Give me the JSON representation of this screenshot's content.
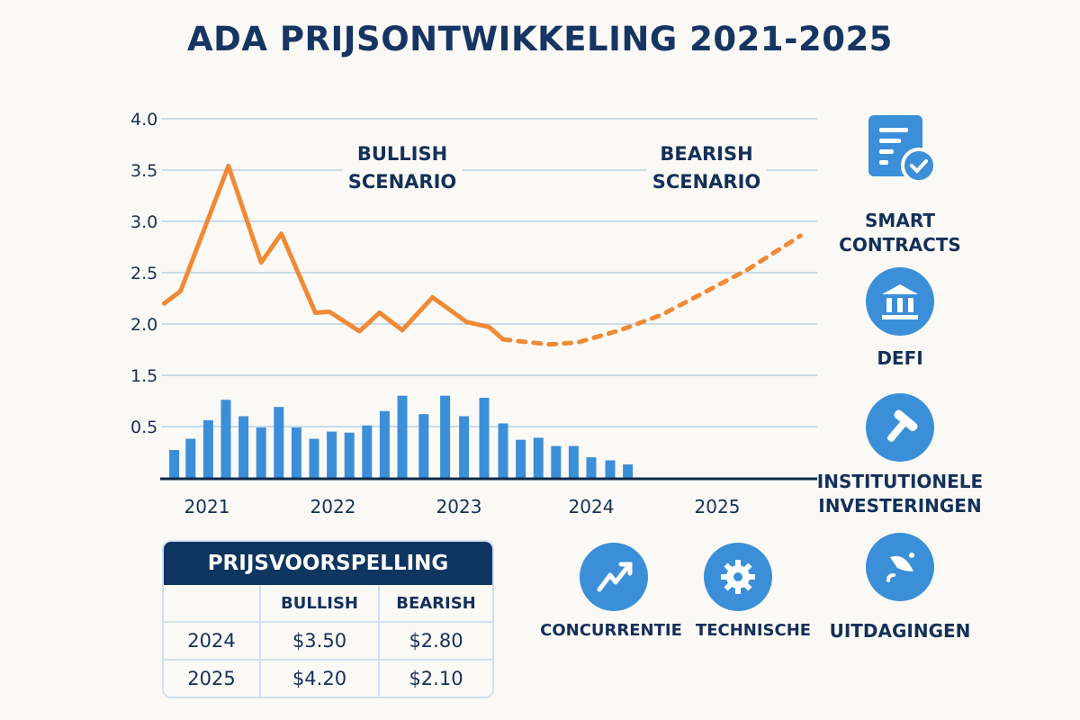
{
  "title": "ADA PRIJSONTWIKKELING 2021-2025",
  "colors": {
    "navy": "#14305a",
    "price_line": "#f08a36",
    "bars": "#3b8fd8",
    "grid": "#c9dcea",
    "icon_bg": "#3b8fd8"
  },
  "chart_data": {
    "type": "line",
    "title": "ADA PRIJSONTWIKKELING 2021-2025",
    "y_tick_labels": [
      "4.0",
      "3.5",
      "3.0",
      "2.5",
      "2.0",
      "1.5",
      "0.5"
    ],
    "x_tick_labels": [
      "2021",
      "2022",
      "2023",
      "2024",
      "2025"
    ],
    "x_tick_values": [
      2021,
      2022,
      2023,
      2024.05,
      2025.05
    ],
    "grid": true,
    "annotations": [
      "BULLISH SCENARIO",
      "BEARISH SCENARIO"
    ],
    "annotation_lines": [
      [
        "BULLISH",
        "SCENARIO"
      ],
      [
        "BEARISH",
        "SCENARIO"
      ]
    ],
    "series": [
      {
        "name": "Historical price",
        "style": "solid",
        "x": [
          2020.66,
          2020.79,
          2021.17,
          2021.43,
          2021.59,
          2021.86,
          2021.97,
          2022.21,
          2022.37,
          2022.55,
          2022.79,
          2023.06,
          2023.24,
          2023.35
        ],
        "y": [
          2.2,
          2.32,
          3.54,
          2.6,
          2.88,
          2.11,
          2.12,
          1.93,
          2.11,
          1.94,
          2.26,
          2.02,
          1.97,
          1.85
        ]
      },
      {
        "name": "Forecast",
        "style": "dashed",
        "x": [
          2023.35,
          2023.72,
          2023.94,
          2024.28,
          2024.61,
          2024.95,
          2025.29,
          2025.71
        ],
        "y": [
          1.85,
          1.8,
          1.82,
          1.94,
          2.09,
          2.31,
          2.53,
          2.86
        ]
      },
      {
        "name": "Volume",
        "type": "bar",
        "x": [
          2020.74,
          2020.87,
          2021.01,
          2021.15,
          2021.29,
          2021.43,
          2021.57,
          2021.71,
          2021.85,
          2021.99,
          2022.13,
          2022.27,
          2022.41,
          2022.55,
          2022.72,
          2022.89,
          2023.04,
          2023.2,
          2023.35,
          2023.49,
          2023.63,
          2023.77,
          2023.91,
          2024.05,
          2024.2,
          2024.34
        ],
        "y": [
          0.28,
          0.39,
          0.57,
          0.77,
          0.61,
          0.5,
          0.7,
          0.5,
          0.39,
          0.46,
          0.45,
          0.52,
          0.66,
          0.81,
          0.63,
          0.81,
          0.61,
          0.79,
          0.54,
          0.38,
          0.4,
          0.32,
          0.32,
          0.21,
          0.18,
          0.14
        ]
      }
    ]
  },
  "side_items": [
    {
      "icon": "contract-check-icon",
      "lines": [
        "SMART",
        "CONTRACTS"
      ]
    },
    {
      "icon": "bank-icon",
      "lines": [
        "DEFI"
      ]
    },
    {
      "icon": "gavel-icon",
      "lines": [
        "INSTITUTIONELE",
        "INVESTERINGEN"
      ]
    },
    {
      "icon": "challenge-icon",
      "lines": [
        "UITDAGINGEN"
      ]
    }
  ],
  "bottom_items": [
    {
      "icon": "trend-up-icon",
      "label": "CONCURRENTIE"
    },
    {
      "icon": "gear-icon",
      "label": "TECHNISCHE"
    }
  ],
  "table": {
    "title": "PRIJSVOORSPELLING",
    "headers": [
      "",
      "BULLISH",
      "BEARISH"
    ],
    "rows": [
      [
        "2024",
        "$3.50",
        "$2.80"
      ],
      [
        "2025",
        "$4.20",
        "$2.10"
      ]
    ]
  }
}
